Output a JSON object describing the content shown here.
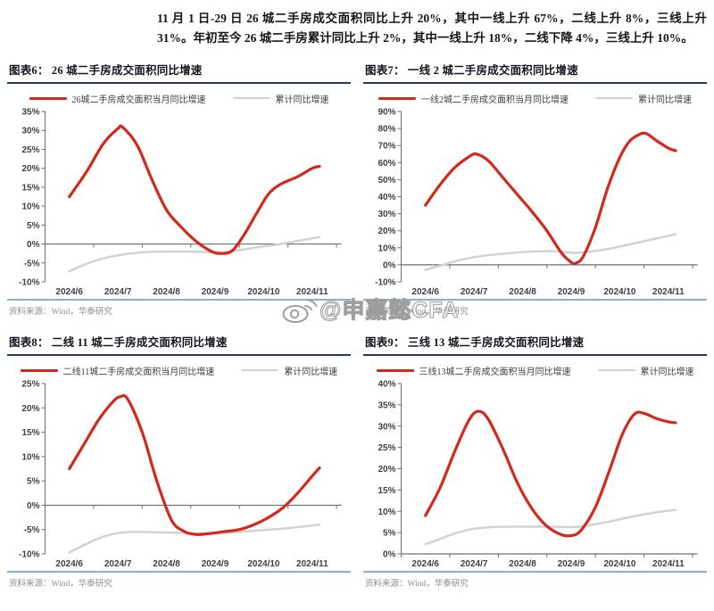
{
  "intro": {
    "text": "11 月 1 日-29 日 26 城二手房成交面积同比上升 20%，其中一线上升 67%，二线上升 8%，三线上升 31%。年初至今 26 城二手房累计同比上升 2%，其中一线上升 18%，二线下降 4%，三线上升 10%。"
  },
  "watermark": {
    "handle": "@申嘉懿CFA",
    "icon": "weibo-icon"
  },
  "colors": {
    "series_red": "#D3281C",
    "series_gray": "#D2D2D2",
    "title_underline": "#1F3864",
    "source_divider": "#8FAFC8",
    "source_text": "#8c8c8c",
    "axis": "#6E6E6E"
  },
  "chart_data": [
    {
      "id": "fig6",
      "type": "line",
      "title": "图表6： 26 城二手房成交面积同比增速",
      "source": "资料来源：Wind，华泰研究",
      "x_labels": [
        "2024/6",
        "2024/7",
        "2024/8",
        "2024/9",
        "2024/10",
        "2024/11"
      ],
      "ylim": [
        -10,
        35
      ],
      "ytick_step": 5,
      "y_ticks": [
        "-10%",
        "-5%",
        "0%",
        "5%",
        "10%",
        "15%",
        "20%",
        "25%",
        "30%",
        "35%"
      ],
      "grid": false,
      "legend_position": "top",
      "series": [
        {
          "name": "26城二手房成交面积当月同比增速",
          "color": "#D3281C",
          "width": 3.2,
          "points": [
            [
              0,
              12.5
            ],
            [
              0.35,
              19
            ],
            [
              0.7,
              26.5
            ],
            [
              1,
              30.5
            ],
            [
              1.1,
              30.8
            ],
            [
              1.4,
              26
            ],
            [
              1.7,
              17
            ],
            [
              2,
              9
            ],
            [
              2.3,
              4.5
            ],
            [
              2.6,
              0.8
            ],
            [
              2.9,
              -1.8
            ],
            [
              3.1,
              -2.5
            ],
            [
              3.35,
              -1.8
            ],
            [
              3.6,
              2.5
            ],
            [
              3.85,
              8
            ],
            [
              4.1,
              13.2
            ],
            [
              4.35,
              15.8
            ],
            [
              4.7,
              17.8
            ],
            [
              5,
              20
            ],
            [
              5.15,
              20.5
            ]
          ]
        },
        {
          "name": "累计同比增速",
          "color": "#D2D2D2",
          "width": 2.5,
          "points": [
            [
              0,
              -7.2
            ],
            [
              0.4,
              -5
            ],
            [
              0.8,
              -3.5
            ],
            [
              1.2,
              -2.6
            ],
            [
              1.6,
              -2.1
            ],
            [
              2,
              -2
            ],
            [
              2.4,
              -2
            ],
            [
              2.8,
              -2.1
            ],
            [
              3.1,
              -2.2
            ],
            [
              3.5,
              -1.6
            ],
            [
              3.9,
              -0.8
            ],
            [
              4.3,
              -0.1
            ],
            [
              4.7,
              0.8
            ],
            [
              5,
              1.5
            ],
            [
              5.15,
              1.8
            ]
          ]
        }
      ]
    },
    {
      "id": "fig7",
      "type": "line",
      "title": "图表7： 一线 2 城二手房成交面积同比增速",
      "source": "资料来源：Wind，华泰研究",
      "x_labels": [
        "2024/6",
        "2024/7",
        "2024/8",
        "2024/9",
        "2024/10",
        "2024/11"
      ],
      "ylim": [
        -10,
        90
      ],
      "ytick_step": 10,
      "y_ticks": [
        "-10%",
        "0%",
        "10%",
        "20%",
        "30%",
        "40%",
        "50%",
        "60%",
        "70%",
        "80%",
        "90%"
      ],
      "grid": false,
      "legend_position": "top",
      "series": [
        {
          "name": "一线2城二手房成交面积当月同比增速",
          "color": "#D3281C",
          "width": 3.2,
          "points": [
            [
              0,
              35
            ],
            [
              0.3,
              47
            ],
            [
              0.6,
              57
            ],
            [
              0.9,
              63.5
            ],
            [
              1.05,
              65
            ],
            [
              1.3,
              61
            ],
            [
              1.6,
              51
            ],
            [
              1.9,
              41
            ],
            [
              2.2,
              31
            ],
            [
              2.5,
              20
            ],
            [
              2.8,
              7
            ],
            [
              3,
              1.5
            ],
            [
              3.1,
              1
            ],
            [
              3.25,
              5
            ],
            [
              3.5,
              22
            ],
            [
              3.75,
              45
            ],
            [
              4,
              63
            ],
            [
              4.2,
              72.5
            ],
            [
              4.4,
              76.5
            ],
            [
              4.55,
              77
            ],
            [
              4.75,
              73
            ],
            [
              5,
              68.5
            ],
            [
              5.15,
              67
            ]
          ]
        },
        {
          "name": "累计同比增速",
          "color": "#D2D2D2",
          "width": 2.5,
          "points": [
            [
              0,
              -3
            ],
            [
              0.3,
              -0.5
            ],
            [
              0.6,
              2
            ],
            [
              1,
              4.5
            ],
            [
              1.4,
              6
            ],
            [
              1.8,
              7
            ],
            [
              2.2,
              7.8
            ],
            [
              2.6,
              8
            ],
            [
              2.9,
              7.3
            ],
            [
              3.1,
              7
            ],
            [
              3.4,
              7.8
            ],
            [
              3.8,
              9.5
            ],
            [
              4.2,
              12
            ],
            [
              4.6,
              14.5
            ],
            [
              5,
              17
            ],
            [
              5.15,
              18
            ]
          ]
        }
      ]
    },
    {
      "id": "fig8",
      "type": "line",
      "title": "图表8： 二线 11 城二手房成交面积同比增速",
      "source": "资料来源：Wind，华泰研究",
      "x_labels": [
        "2024/6",
        "2024/7",
        "2024/8",
        "2024/9",
        "2024/10",
        "2024/11"
      ],
      "ylim": [
        -10,
        25
      ],
      "ytick_step": 5,
      "y_ticks": [
        "-10%",
        "-5%",
        "0%",
        "5%",
        "10%",
        "15%",
        "20%",
        "25%"
      ],
      "grid": false,
      "legend_position": "top",
      "series": [
        {
          "name": "二线11城二手房成交面积当月同比增速",
          "color": "#D3281C",
          "width": 3.2,
          "points": [
            [
              0,
              7.5
            ],
            [
              0.3,
              12.5
            ],
            [
              0.6,
              17.5
            ],
            [
              0.9,
              21.3
            ],
            [
              1.05,
              22.3
            ],
            [
              1.2,
              21.8
            ],
            [
              1.5,
              15
            ],
            [
              1.8,
              5
            ],
            [
              2.1,
              -3
            ],
            [
              2.35,
              -5.3
            ],
            [
              2.6,
              -6
            ],
            [
              2.9,
              -5.8
            ],
            [
              3.2,
              -5.4
            ],
            [
              3.5,
              -5
            ],
            [
              3.8,
              -4
            ],
            [
              4.1,
              -2.5
            ],
            [
              4.4,
              -0.5
            ],
            [
              4.7,
              2.5
            ],
            [
              5,
              6
            ],
            [
              5.15,
              7.7
            ]
          ]
        },
        {
          "name": "累计同比增速",
          "color": "#D2D2D2",
          "width": 2.5,
          "points": [
            [
              0,
              -9.7
            ],
            [
              0.3,
              -8.2
            ],
            [
              0.6,
              -6.8
            ],
            [
              0.9,
              -5.9
            ],
            [
              1.2,
              -5.5
            ],
            [
              1.6,
              -5.5
            ],
            [
              2,
              -5.6
            ],
            [
              2.4,
              -5.7
            ],
            [
              2.8,
              -5.8
            ],
            [
              3.2,
              -5.7
            ],
            [
              3.6,
              -5.4
            ],
            [
              4,
              -5.1
            ],
            [
              4.4,
              -4.8
            ],
            [
              4.8,
              -4.4
            ],
            [
              5.15,
              -4
            ]
          ]
        }
      ]
    },
    {
      "id": "fig9",
      "type": "line",
      "title": "图表9： 三线 13 城二手房成交面积同比增速",
      "source": "资料来源：Wind，华泰研究",
      "x_labels": [
        "2024/6",
        "2024/7",
        "2024/8",
        "2024/9",
        "2024/10",
        "2024/11"
      ],
      "ylim": [
        0,
        40
      ],
      "ytick_step": 5,
      "y_ticks": [
        "0%",
        "5%",
        "10%",
        "15%",
        "20%",
        "25%",
        "30%",
        "35%",
        "40%"
      ],
      "grid": false,
      "legend_position": "top",
      "series": [
        {
          "name": "三线13城二手房成交面积当月同比增速",
          "color": "#D3281C",
          "width": 3.2,
          "points": [
            [
              0,
              9
            ],
            [
              0.3,
              15.5
            ],
            [
              0.6,
              24
            ],
            [
              0.9,
              31.5
            ],
            [
              1.1,
              33.5
            ],
            [
              1.3,
              31.5
            ],
            [
              1.6,
              24.5
            ],
            [
              1.9,
              16.5
            ],
            [
              2.2,
              10.5
            ],
            [
              2.5,
              6.5
            ],
            [
              2.8,
              4.5
            ],
            [
              3,
              4.3
            ],
            [
              3.2,
              5.5
            ],
            [
              3.5,
              11
            ],
            [
              3.8,
              20
            ],
            [
              4.05,
              28
            ],
            [
              4.3,
              32.8
            ],
            [
              4.5,
              33
            ],
            [
              4.75,
              31.8
            ],
            [
              5,
              31
            ],
            [
              5.15,
              30.8
            ]
          ]
        },
        {
          "name": "累计同比增速",
          "color": "#D2D2D2",
          "width": 2.5,
          "points": [
            [
              0,
              2.3
            ],
            [
              0.3,
              3.5
            ],
            [
              0.6,
              4.8
            ],
            [
              1,
              5.9
            ],
            [
              1.4,
              6.3
            ],
            [
              1.8,
              6.4
            ],
            [
              2.2,
              6.4
            ],
            [
              2.6,
              6.4
            ],
            [
              3,
              6.3
            ],
            [
              3.3,
              6.6
            ],
            [
              3.7,
              7.4
            ],
            [
              4.1,
              8.4
            ],
            [
              4.5,
              9.3
            ],
            [
              4.9,
              10
            ],
            [
              5.15,
              10.3
            ]
          ]
        }
      ]
    }
  ]
}
